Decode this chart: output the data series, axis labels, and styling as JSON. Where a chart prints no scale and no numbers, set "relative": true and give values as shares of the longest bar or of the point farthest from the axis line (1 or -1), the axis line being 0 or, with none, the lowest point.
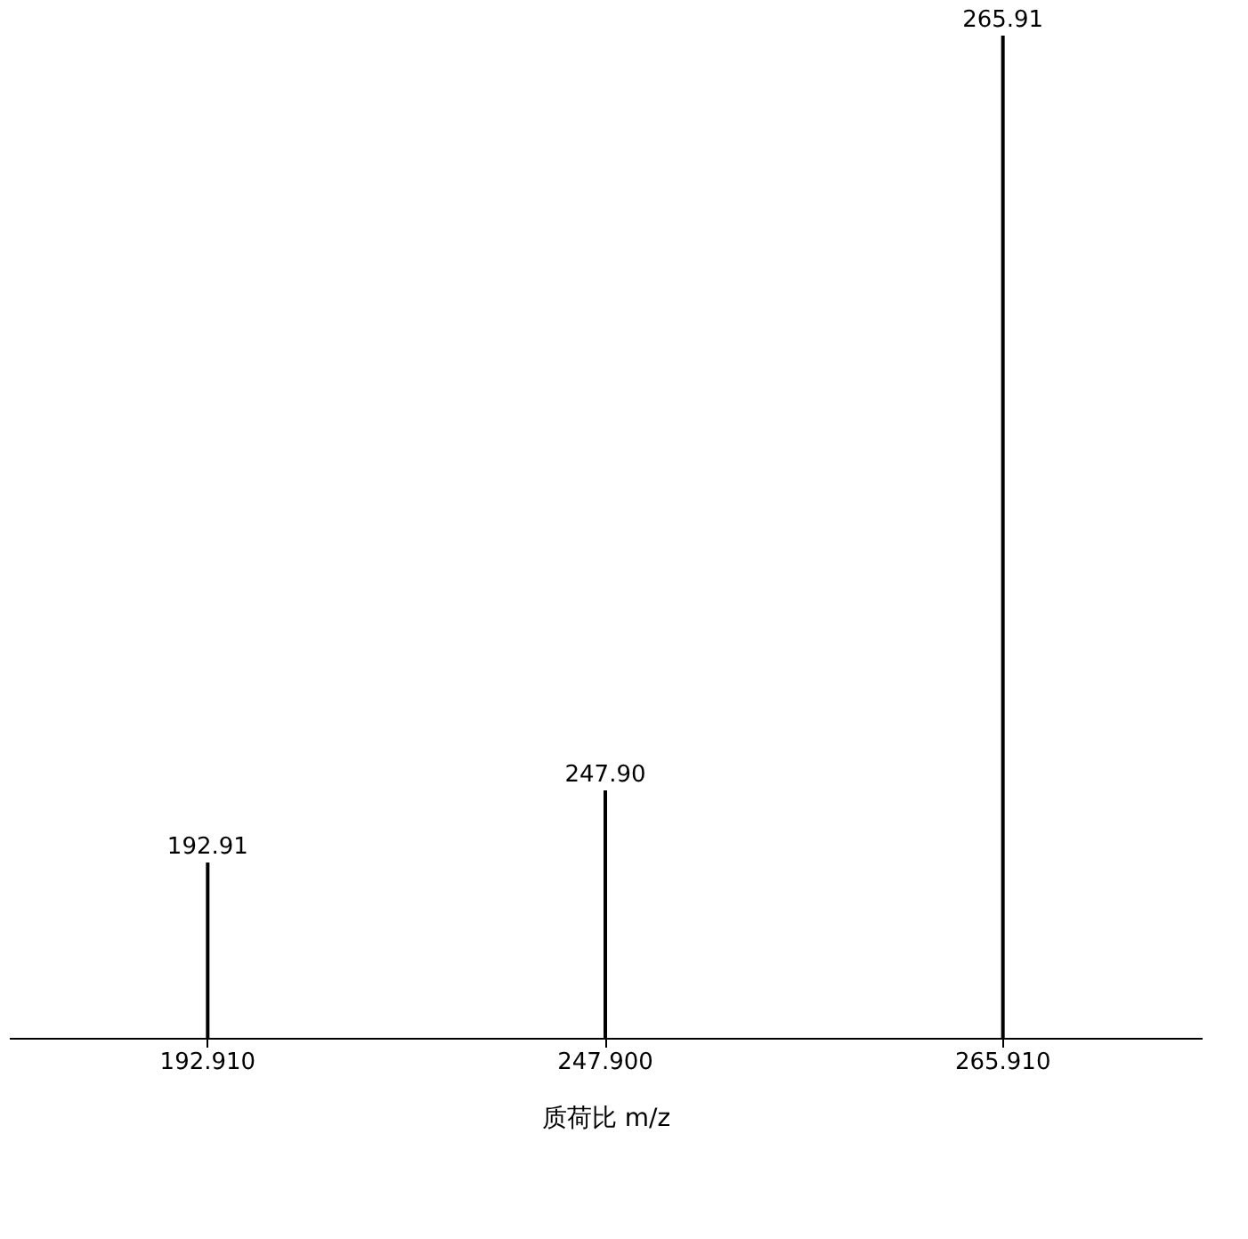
{
  "chart_data": {
    "type": "bar",
    "relative": true,
    "categories": [
      "192.910",
      "247.900",
      "265.910"
    ],
    "values": [
      0.175,
      0.247,
      1
    ],
    "color": "#000000",
    "xlabel": "质荷比   m/z",
    "grid": false,
    "annotations": [
      {
        "text": "192.91",
        "x": "192.910",
        "y": 0.175
      },
      {
        "text": "247.90",
        "x": "247.900",
        "y": 0.247
      },
      {
        "text": "265.91",
        "x": "265.910",
        "y": 1
      }
    ]
  }
}
